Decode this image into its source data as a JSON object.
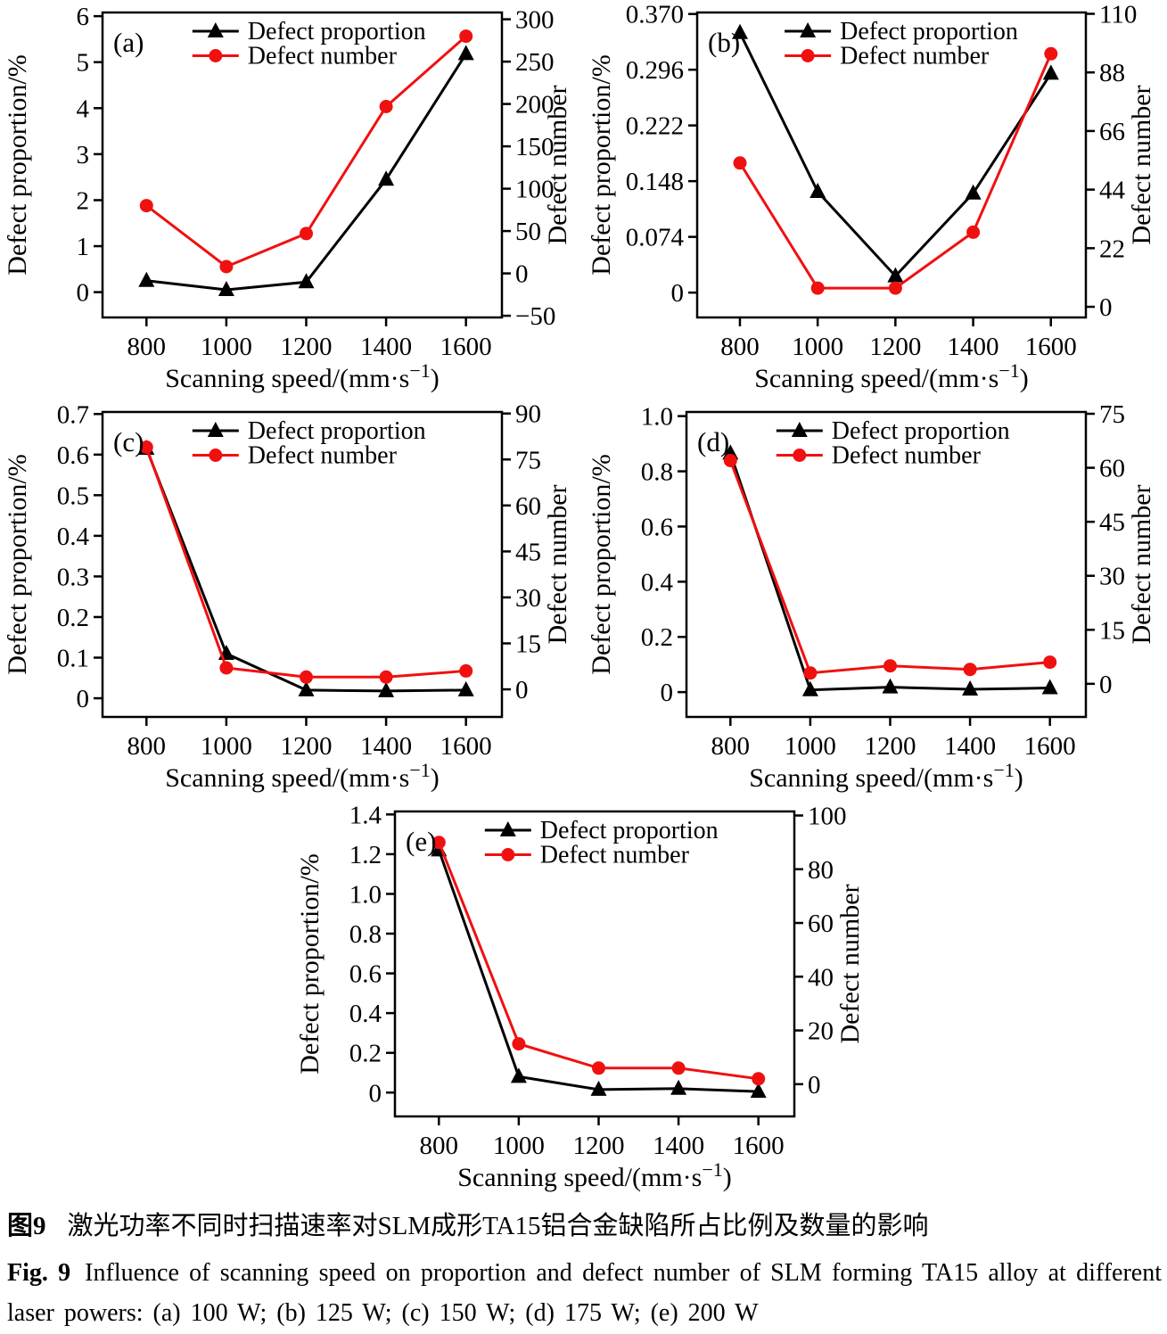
{
  "figure": {
    "caption_cn": {
      "label": "图9",
      "text": "激光功率不同时扫描速率对SLM成形TA15铝合金缺陷所占比例及数量的影响"
    },
    "caption_en": {
      "label": "Fig. 9",
      "text": "Influence of scanning speed on proportion and defect number of SLM forming TA15 alloy at different laser powers: (a) 100 W; (b) 125 W; (c) 150 W; (d) 175 W; (e) 200 W"
    }
  },
  "colors": {
    "proportion_series": "#000000",
    "number_series": "#f01010"
  },
  "chart_data": [
    {
      "type": "line",
      "panel": "(a)",
      "laser_power": "100 W",
      "xlabel": "Scanning speed/(mm·s⁻¹)",
      "x": [
        800,
        1000,
        1200,
        1400,
        1600
      ],
      "x_tick_labels": [
        "800",
        "1000",
        "1200",
        "1400",
        "1600"
      ],
      "x_range": [
        690,
        1690
      ],
      "left_axis": {
        "label": "Defect proportion/%",
        "range": [
          -0.55,
          6.08
        ],
        "tick_vals": [
          0,
          1,
          2,
          3,
          4,
          5,
          6
        ],
        "tick_labels": [
          "0",
          "1",
          "2",
          "3",
          "4",
          "5",
          "6"
        ]
      },
      "right_axis": {
        "label": "Defect number",
        "range": [
          -52,
          308
        ],
        "tick_vals": [
          -50,
          0,
          50,
          100,
          150,
          200,
          250,
          300
        ],
        "tick_labels": [
          "−50",
          "0",
          "50",
          "100",
          "150",
          "200",
          "250",
          "300"
        ]
      },
      "series": [
        {
          "name": "Defect proportion",
          "axis": "left",
          "marker": "triangle",
          "color": "#000000",
          "values": [
            0.25,
            0.05,
            0.22,
            2.45,
            5.18
          ]
        },
        {
          "name": "Defect number",
          "axis": "right",
          "marker": "circle",
          "color": "#f01010",
          "values": [
            80,
            8,
            47,
            197,
            280
          ]
        }
      ],
      "legend_position": "top-inset",
      "grid": false
    },
    {
      "type": "line",
      "panel": "(b)",
      "laser_power": "125 W",
      "xlabel": "Scanning speed/(mm·s⁻¹)",
      "x": [
        800,
        1000,
        1200,
        1400,
        1600
      ],
      "x_tick_labels": [
        "800",
        "1000",
        "1200",
        "1400",
        "1600"
      ],
      "x_range": [
        690,
        1690
      ],
      "left_axis": {
        "label": "Defect proportion/%",
        "range": [
          -0.033,
          0.372
        ],
        "tick_vals": [
          0,
          0.074,
          0.148,
          0.222,
          0.296,
          0.37
        ],
        "tick_labels": [
          "0",
          "0.074",
          "0.148",
          "0.222",
          "0.296",
          "0.370"
        ]
      },
      "right_axis": {
        "label": "Defect number",
        "range": [
          -4,
          110.5
        ],
        "tick_vals": [
          0,
          22,
          44,
          66,
          88,
          110
        ],
        "tick_labels": [
          "0",
          "22",
          "44",
          "66",
          "88",
          "110"
        ]
      },
      "series": [
        {
          "name": "Defect proportion",
          "axis": "left",
          "marker": "triangle",
          "color": "#000000",
          "values": [
            0.345,
            0.134,
            0.022,
            0.132,
            0.291
          ]
        },
        {
          "name": "Defect number",
          "axis": "right",
          "marker": "circle",
          "color": "#f01010",
          "values": [
            54,
            7,
            7,
            28,
            95
          ]
        }
      ],
      "legend_position": "top-inset",
      "grid": false
    },
    {
      "type": "line",
      "panel": "(c)",
      "laser_power": "150 W",
      "xlabel": "Scanning speed/(mm·s⁻¹)",
      "x": [
        800,
        1000,
        1200,
        1400,
        1600
      ],
      "x_tick_labels": [
        "800",
        "1000",
        "1200",
        "1400",
        "1600"
      ],
      "x_range": [
        690,
        1690
      ],
      "left_axis": {
        "label": "Defect proportion/%",
        "range": [
          -0.046,
          0.705
        ],
        "tick_vals": [
          0,
          0.1,
          0.2,
          0.3,
          0.4,
          0.5,
          0.6,
          0.7
        ],
        "tick_labels": [
          "0",
          "0.1",
          "0.2",
          "0.3",
          "0.4",
          "0.5",
          "0.6",
          "0.7"
        ]
      },
      "right_axis": {
        "label": "Defect number",
        "range": [
          -9,
          90.5
        ],
        "tick_vals": [
          0,
          15,
          30,
          45,
          60,
          75,
          90
        ],
        "tick_labels": [
          "0",
          "15",
          "30",
          "45",
          "60",
          "75",
          "90"
        ]
      },
      "series": [
        {
          "name": "Defect proportion",
          "axis": "left",
          "marker": "triangle",
          "color": "#000000",
          "values": [
            0.615,
            0.11,
            0.02,
            0.018,
            0.02
          ]
        },
        {
          "name": "Defect number",
          "axis": "right",
          "marker": "circle",
          "color": "#f01010",
          "values": [
            79,
            7,
            4,
            4,
            6
          ]
        }
      ],
      "legend_position": "top-inset",
      "grid": false
    },
    {
      "type": "line",
      "panel": "(d)",
      "laser_power": "175 W",
      "xlabel": "Scanning speed/(mm·s⁻¹)",
      "x": [
        800,
        1000,
        1200,
        1400,
        1600
      ],
      "x_tick_labels": [
        "800",
        "1000",
        "1200",
        "1400",
        "1600"
      ],
      "x_range": [
        690,
        1690
      ],
      "left_axis": {
        "label": "Defect proportion/%",
        "range": [
          -0.09,
          1.015
        ],
        "tick_vals": [
          0,
          0.2,
          0.4,
          0.6,
          0.8,
          1.0
        ],
        "tick_labels": [
          "0",
          "0.2",
          "0.4",
          "0.6",
          "0.8",
          "1.0"
        ]
      },
      "right_axis": {
        "label": "Defect number",
        "range": [
          -9.2,
          75.5
        ],
        "tick_vals": [
          0,
          15,
          30,
          45,
          60,
          75
        ],
        "tick_labels": [
          "0",
          "15",
          "30",
          "45",
          "60",
          "75"
        ]
      },
      "series": [
        {
          "name": "Defect proportion",
          "axis": "left",
          "marker": "triangle",
          "color": "#000000",
          "values": [
            0.865,
            0.008,
            0.018,
            0.01,
            0.015
          ]
        },
        {
          "name": "Defect number",
          "axis": "right",
          "marker": "circle",
          "color": "#f01010",
          "values": [
            62,
            3,
            5,
            4,
            6
          ]
        }
      ],
      "legend_position": "top-inset",
      "grid": false
    },
    {
      "type": "line",
      "panel": "(e)",
      "laser_power": "200 W",
      "xlabel": "Scanning speed/(mm·s⁻¹)",
      "x": [
        800,
        1000,
        1200,
        1400,
        1600
      ],
      "x_tick_labels": [
        "800",
        "1000",
        "1200",
        "1400",
        "1600"
      ],
      "x_range": [
        690,
        1690
      ],
      "left_axis": {
        "label": "Defect proportion/%",
        "range": [
          -0.12,
          1.415
        ],
        "tick_vals": [
          0,
          0.2,
          0.4,
          0.6,
          0.8,
          1.0,
          1.2,
          1.4
        ],
        "tick_labels": [
          "0",
          "0.2",
          "0.4",
          "0.6",
          "0.8",
          "1.0",
          "1.2",
          "1.4"
        ]
      },
      "right_axis": {
        "label": "Defect number",
        "range": [
          -12,
          101.5
        ],
        "tick_vals": [
          0,
          20,
          40,
          60,
          80,
          100
        ],
        "tick_labels": [
          "0",
          "20",
          "40",
          "60",
          "80",
          "100"
        ]
      },
      "series": [
        {
          "name": "Defect proportion",
          "axis": "left",
          "marker": "triangle",
          "color": "#000000",
          "values": [
            1.22,
            0.08,
            0.015,
            0.02,
            0.005
          ]
        },
        {
          "name": "Defect number",
          "axis": "right",
          "marker": "circle",
          "color": "#f01010",
          "values": [
            90,
            15,
            6,
            6,
            2
          ]
        }
      ],
      "legend_position": "top-inset",
      "grid": false
    }
  ]
}
